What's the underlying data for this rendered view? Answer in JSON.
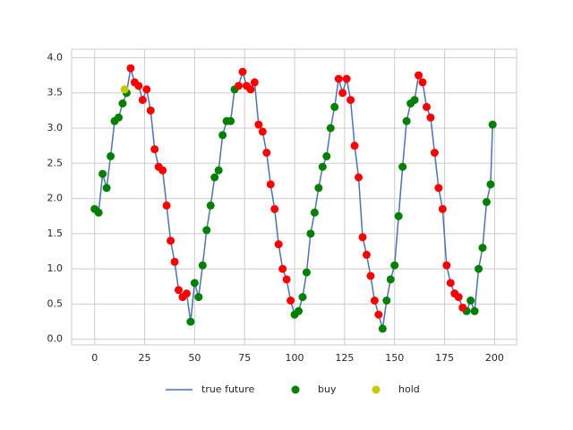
{
  "chart_data": {
    "type": "line",
    "xlim": [
      -11.5,
      211
    ],
    "ylim": [
      -0.08,
      4.12
    ],
    "xticks": [
      0,
      25,
      50,
      75,
      100,
      125,
      150,
      175,
      200
    ],
    "yticks": [
      {
        "value": 0,
        "label": "0.0"
      },
      {
        "value": 0.5,
        "label": "0.5"
      },
      {
        "value": 1,
        "label": "1.0"
      },
      {
        "value": 1.5,
        "label": "1.5"
      },
      {
        "value": 2,
        "label": "2.0"
      },
      {
        "value": 2.5,
        "label": "2.5"
      },
      {
        "value": 3,
        "label": "3.0"
      },
      {
        "value": 3.5,
        "label": "3.5"
      },
      {
        "value": 4,
        "label": "4.0"
      }
    ],
    "grid": true,
    "legend": "bottom",
    "series": [
      {
        "name": "true future",
        "type": "line",
        "color": "#4c72b0",
        "x": [
          0,
          2,
          4,
          6,
          8,
          10,
          12,
          14,
          16,
          18,
          20,
          22,
          24,
          26,
          28,
          30,
          32,
          34,
          36,
          38,
          40,
          42,
          44,
          46,
          48,
          50,
          52,
          54,
          56,
          58,
          60,
          62,
          64,
          66,
          68,
          70,
          72,
          74,
          76,
          78,
          80,
          82,
          84,
          86,
          88,
          90,
          92,
          94,
          96,
          98,
          100,
          102,
          104,
          106,
          108,
          110,
          112,
          114,
          116,
          118,
          120,
          122,
          124,
          126,
          128,
          130,
          132,
          134,
          136,
          138,
          140,
          142,
          144,
          146,
          148,
          150,
          152,
          154,
          156,
          158,
          160,
          162,
          164,
          166,
          168,
          170,
          172,
          174,
          176,
          178,
          180,
          182,
          184,
          186,
          188,
          190,
          192,
          194,
          196,
          198,
          199
        ],
        "values": [
          1.85,
          1.8,
          2.35,
          2.15,
          2.6,
          3.1,
          3.15,
          3.35,
          3.5,
          3.85,
          3.65,
          3.6,
          3.4,
          3.55,
          3.25,
          2.7,
          2.45,
          2.4,
          1.9,
          1.4,
          1.1,
          0.7,
          0.6,
          0.65,
          0.25,
          0.8,
          0.6,
          1.05,
          1.55,
          1.9,
          2.3,
          2.4,
          2.9,
          3.1,
          3.1,
          3.55,
          3.6,
          3.8,
          3.6,
          3.55,
          3.65,
          3.05,
          2.95,
          2.65,
          2.2,
          1.85,
          1.35,
          1.0,
          0.85,
          0.55,
          0.35,
          0.4,
          0.6,
          0.95,
          1.5,
          1.8,
          2.15,
          2.45,
          2.6,
          3.0,
          3.3,
          3.7,
          3.5,
          3.7,
          3.4,
          2.75,
          2.3,
          1.45,
          1.2,
          0.9,
          0.55,
          0.35,
          0.15,
          0.55,
          0.85,
          1.05,
          1.75,
          2.45,
          3.1,
          3.35,
          3.4,
          3.75,
          3.65,
          3.3,
          3.15,
          2.65,
          2.15,
          1.85,
          1.05,
          0.8,
          0.65,
          0.6,
          0.45,
          0.4,
          0.55,
          0.4,
          1.0,
          1.3,
          1.95,
          2.2,
          3.05
        ]
      },
      {
        "name": "buy",
        "type": "scatter",
        "color": "#008000",
        "x": [
          0,
          2,
          4,
          6,
          8,
          10,
          12,
          14,
          16,
          48,
          50,
          52,
          54,
          56,
          58,
          60,
          62,
          64,
          66,
          68,
          70,
          100,
          102,
          104,
          106,
          108,
          110,
          112,
          114,
          116,
          118,
          120,
          144,
          146,
          148,
          150,
          152,
          154,
          156,
          158,
          160,
          186,
          188,
          190,
          192,
          194,
          196,
          198,
          199
        ],
        "values": [
          1.85,
          1.8,
          2.35,
          2.15,
          2.6,
          3.1,
          3.15,
          3.35,
          3.5,
          0.25,
          0.8,
          0.6,
          1.05,
          1.55,
          1.9,
          2.3,
          2.4,
          2.9,
          3.1,
          3.1,
          3.55,
          0.35,
          0.4,
          0.6,
          0.95,
          1.5,
          1.8,
          2.15,
          2.45,
          2.6,
          3.0,
          3.3,
          0.15,
          0.55,
          0.85,
          1.05,
          1.75,
          2.45,
          3.1,
          3.35,
          3.4,
          0.4,
          0.55,
          0.4,
          1.0,
          1.3,
          1.95,
          2.2,
          3.05
        ]
      },
      {
        "type": "scatter",
        "color": "#ff0000",
        "x": [
          18,
          20,
          22,
          24,
          26,
          28,
          30,
          32,
          34,
          36,
          38,
          40,
          42,
          44,
          46,
          72,
          74,
          76,
          78,
          80,
          82,
          84,
          86,
          88,
          90,
          92,
          94,
          96,
          98,
          122,
          124,
          126,
          128,
          130,
          132,
          134,
          136,
          138,
          140,
          142,
          162,
          164,
          166,
          168,
          170,
          172,
          174,
          176,
          178,
          180,
          182,
          184
        ],
        "values": [
          3.85,
          3.65,
          3.6,
          3.4,
          3.55,
          3.25,
          2.7,
          2.45,
          2.4,
          1.9,
          1.4,
          1.1,
          0.7,
          0.6,
          0.65,
          3.6,
          3.8,
          3.6,
          3.55,
          3.65,
          3.05,
          2.95,
          2.65,
          2.2,
          1.85,
          1.35,
          1.0,
          0.85,
          0.55,
          3.7,
          3.5,
          3.7,
          3.4,
          2.75,
          2.3,
          1.45,
          1.2,
          0.9,
          0.55,
          0.35,
          3.75,
          3.65,
          3.3,
          3.15,
          2.65,
          2.15,
          1.85,
          1.05,
          0.8,
          0.65,
          0.6,
          0.45
        ]
      },
      {
        "name": "hold",
        "type": "scatter",
        "color": "#c8c800",
        "x": [
          15
        ],
        "values": [
          3.55
        ]
      }
    ]
  }
}
